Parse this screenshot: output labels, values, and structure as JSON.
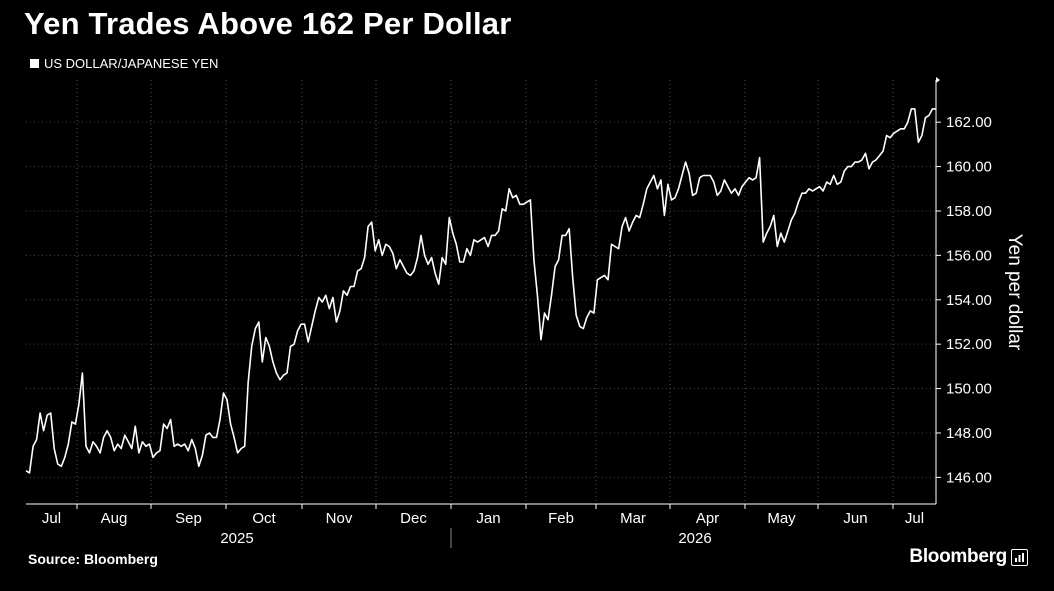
{
  "chart_data": {
    "type": "line",
    "title": "Yen Trades Above 162 Per Dollar",
    "legend": "US DOLLAR/JAPANESE YEN",
    "ylabel": "Yen per dollar",
    "ylim": [
      144.8,
      163.9
    ],
    "yticks": [
      "146.00",
      "148.00",
      "150.00",
      "152.00",
      "154.00",
      "156.00",
      "158.00",
      "160.00",
      "162.00"
    ],
    "x_month_labels": [
      "Jul",
      "Aug",
      "Sep",
      "Oct",
      "Nov",
      "Dec",
      "Jan",
      "Feb",
      "Mar",
      "Apr",
      "May",
      "Jun",
      "Jul"
    ],
    "year_labels": [
      "2025",
      "2026"
    ],
    "grid": "vertical dotted",
    "legend_position": "top-left",
    "series": [
      {
        "values": [
          146.3,
          146.2,
          147.4,
          147.7,
          148.9,
          148.1,
          148.8,
          148.9,
          147.3,
          146.6,
          146.5,
          146.9,
          147.5,
          148.5,
          148.4,
          149.3,
          150.7,
          147.4,
          147.1,
          147.6,
          147.4,
          147.1,
          147.8,
          148.1,
          147.8,
          147.2,
          147.5,
          147.3,
          147.9,
          147.6,
          147.3,
          148.3,
          147.1,
          147.6,
          147.4,
          147.5,
          146.9,
          147.1,
          147.2,
          148.4,
          148.2,
          148.6,
          147.4,
          147.5,
          147.4,
          147.5,
          147.2,
          147.7,
          147.3,
          146.5,
          147.0,
          147.9,
          148.0,
          147.8,
          147.8,
          148.6,
          149.8,
          149.5,
          148.4,
          147.8,
          147.1,
          147.3,
          147.4,
          150.3,
          151.9,
          152.7,
          153.0,
          151.2,
          152.3,
          151.9,
          151.2,
          150.7,
          150.4,
          150.6,
          150.7,
          151.9,
          152.0,
          152.6,
          152.9,
          152.9,
          152.1,
          152.8,
          153.5,
          154.1,
          153.9,
          154.2,
          153.6,
          154.1,
          153.0,
          153.5,
          154.4,
          154.2,
          154.6,
          154.6,
          155.3,
          155.4,
          155.9,
          157.3,
          157.5,
          156.2,
          156.7,
          156.0,
          156.5,
          156.4,
          156.1,
          155.4,
          155.8,
          155.5,
          155.2,
          155.1,
          155.3,
          155.9,
          156.9,
          156.0,
          155.6,
          155.9,
          155.2,
          154.7,
          155.9,
          155.6,
          157.7,
          157.0,
          156.5,
          155.7,
          155.7,
          156.3,
          156.0,
          156.7,
          156.6,
          156.7,
          156.8,
          156.4,
          156.9,
          156.9,
          157.1,
          158.1,
          158.0,
          159.0,
          158.6,
          158.7,
          158.3,
          158.3,
          158.4,
          158.5,
          155.8,
          154.2,
          152.2,
          153.4,
          153.1,
          154.2,
          155.5,
          155.8,
          156.9,
          156.9,
          157.2,
          155.0,
          153.3,
          152.8,
          152.7,
          153.2,
          153.5,
          153.4,
          154.9,
          155.0,
          155.1,
          154.9,
          156.5,
          156.4,
          156.3,
          157.3,
          157.7,
          157.1,
          157.5,
          157.8,
          157.7,
          158.3,
          159.0,
          159.3,
          159.6,
          159.0,
          159.4,
          157.8,
          159.2,
          158.5,
          158.6,
          159.0,
          159.6,
          160.2,
          159.7,
          158.7,
          158.8,
          159.5,
          159.6,
          159.6,
          159.6,
          159.3,
          158.7,
          158.9,
          159.4,
          159.1,
          158.8,
          159.0,
          158.7,
          159.1,
          159.3,
          159.5,
          159.4,
          159.5,
          160.4,
          156.6,
          157.0,
          157.3,
          157.8,
          156.4,
          157.0,
          156.6,
          157.1,
          157.6,
          157.9,
          158.4,
          158.8,
          158.8,
          159.0,
          158.9,
          159.0,
          159.1,
          158.9,
          159.3,
          159.2,
          159.6,
          159.2,
          159.3,
          159.8,
          160.0,
          160.0,
          160.2,
          160.2,
          160.3,
          160.6,
          159.9,
          160.2,
          160.3,
          160.5,
          160.7,
          161.4,
          161.3,
          161.5,
          161.6,
          161.7,
          161.7,
          162.0,
          162.6,
          162.6,
          161.1,
          161.4,
          162.2,
          162.3,
          162.6,
          162.6
        ]
      }
    ],
    "colors": {
      "background": "#000000",
      "line": "#ffffff",
      "text": "#ffffff"
    }
  },
  "header": {
    "title": "Yen Trades Above 162 Per Dollar",
    "legend_label": "US DOLLAR/JAPANESE YEN"
  },
  "footer": {
    "source": "Source: Bloomberg",
    "brand": "Bloomberg"
  }
}
